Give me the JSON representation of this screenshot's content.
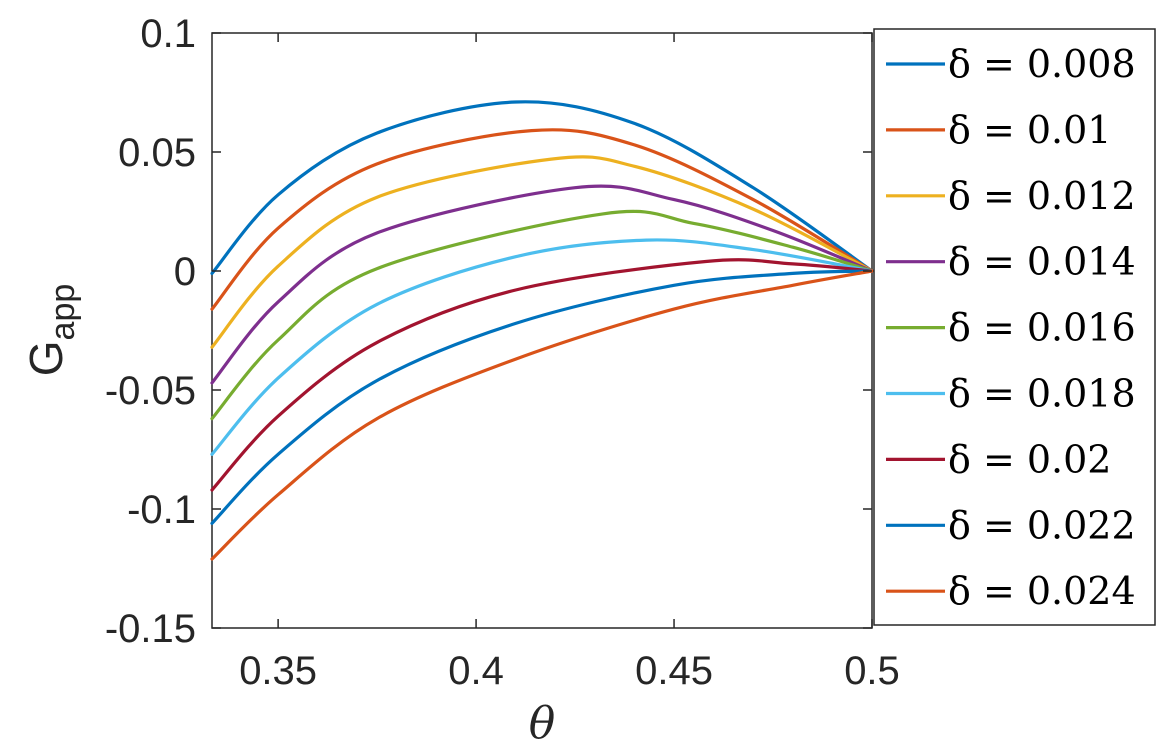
{
  "chart_data": {
    "type": "line",
    "xlabel": "θ",
    "ylabel_main": "G",
    "ylabel_sub": "app",
    "xlim": [
      0.3333,
      0.5
    ],
    "ylim": [
      -0.15,
      0.1
    ],
    "xticks": [
      0.35,
      0.4,
      0.45,
      0.5
    ],
    "xtick_labels": [
      "0.35",
      "0.4",
      "0.45",
      "0.5"
    ],
    "yticks": [
      0.1,
      0.05,
      0,
      -0.05,
      -0.1,
      -0.15
    ],
    "ytick_labels": [
      "0.1",
      "0.05",
      "0",
      "-0.05",
      "-0.1",
      "-0.15"
    ],
    "grid": false,
    "legend_position": "outside-right",
    "series": [
      {
        "name": "δ = 0.008",
        "color": "#0072BD",
        "x": [
          0.3333,
          0.35,
          0.375,
          0.41,
          0.44,
          0.47,
          0.5
        ],
        "y": [
          -0.001,
          0.032,
          0.058,
          0.071,
          0.062,
          0.035,
          0.0
        ]
      },
      {
        "name": "δ = 0.01",
        "color": "#D95319",
        "x": [
          0.3333,
          0.35,
          0.375,
          0.414,
          0.44,
          0.47,
          0.5
        ],
        "y": [
          -0.016,
          0.018,
          0.045,
          0.059,
          0.053,
          0.03,
          0.0
        ]
      },
      {
        "name": "δ = 0.012",
        "color": "#EDB120",
        "x": [
          0.3333,
          0.35,
          0.375,
          0.419,
          0.44,
          0.47,
          0.5
        ],
        "y": [
          -0.032,
          0.002,
          0.031,
          0.047,
          0.044,
          0.026,
          0.0
        ]
      },
      {
        "name": "δ = 0.014",
        "color": "#7E2F8E",
        "x": [
          0.3333,
          0.35,
          0.375,
          0.425,
          0.45,
          0.475,
          0.5
        ],
        "y": [
          -0.047,
          -0.013,
          0.016,
          0.035,
          0.03,
          0.017,
          0.0
        ]
      },
      {
        "name": "δ = 0.016",
        "color": "#77AC30",
        "x": [
          0.3333,
          0.35,
          0.375,
          0.432,
          0.455,
          0.48,
          0.5
        ],
        "y": [
          -0.062,
          -0.029,
          0.001,
          0.024,
          0.02,
          0.01,
          0.0
        ]
      },
      {
        "name": "δ = 0.018",
        "color": "#4DBEEE",
        "x": [
          0.3333,
          0.35,
          0.375,
          0.41,
          0.443,
          0.47,
          0.5
        ],
        "y": [
          -0.077,
          -0.045,
          -0.014,
          0.006,
          0.013,
          0.009,
          0.0
        ]
      },
      {
        "name": "δ = 0.02",
        "color": "#A2142F",
        "x": [
          0.3333,
          0.35,
          0.375,
          0.41,
          0.458,
          0.48,
          0.5
        ],
        "y": [
          -0.092,
          -0.061,
          -0.03,
          -0.008,
          0.004,
          0.003,
          0.0
        ]
      },
      {
        "name": "δ = 0.022",
        "color": "#0072BD",
        "x": [
          0.3333,
          0.35,
          0.375,
          0.41,
          0.45,
          0.48,
          0.5
        ],
        "y": [
          -0.106,
          -0.077,
          -0.046,
          -0.022,
          -0.006,
          -0.001,
          0.0
        ]
      },
      {
        "name": "δ = 0.024",
        "color": "#D95319",
        "x": [
          0.3333,
          0.35,
          0.375,
          0.41,
          0.45,
          0.48,
          0.5
        ],
        "y": [
          -0.121,
          -0.094,
          -0.062,
          -0.037,
          -0.016,
          -0.006,
          0.0
        ]
      }
    ]
  }
}
